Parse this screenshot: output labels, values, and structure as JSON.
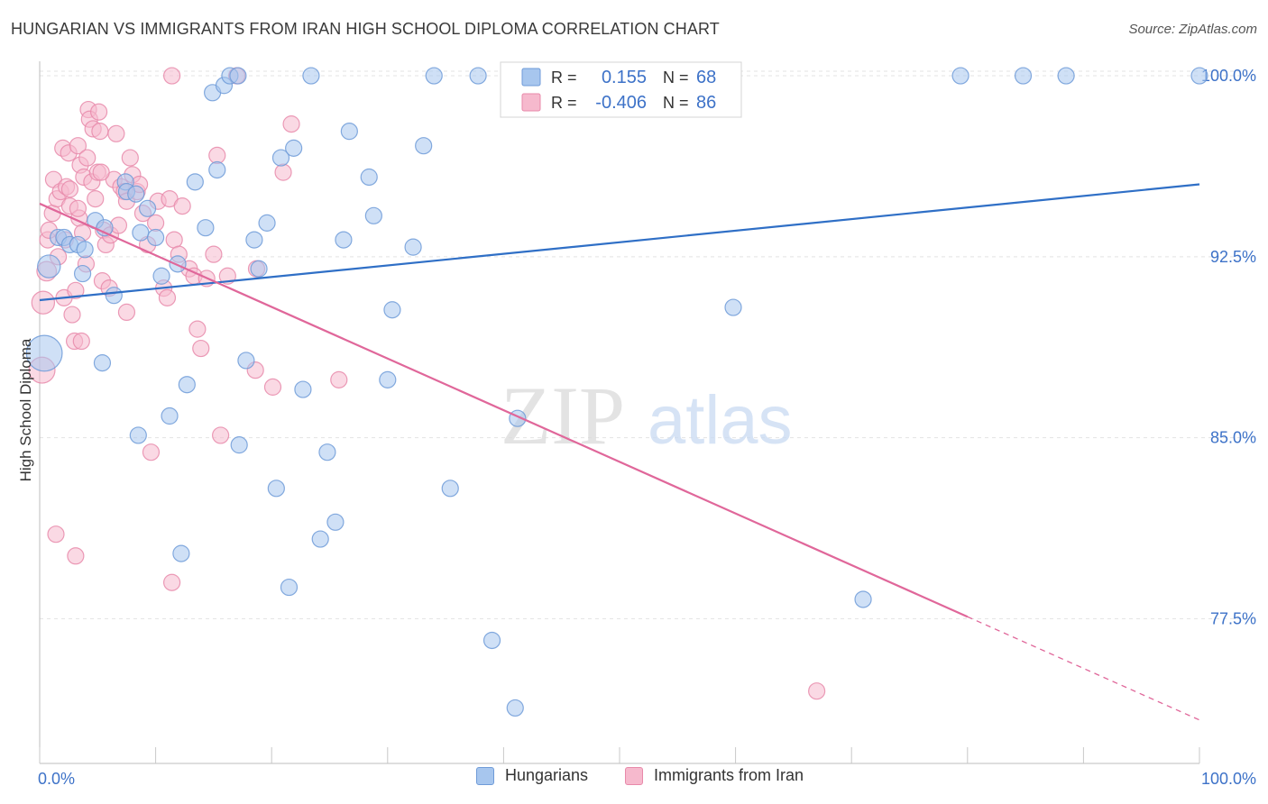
{
  "header": {
    "title": "HUNGARIAN VS IMMIGRANTS FROM IRAN HIGH SCHOOL DIPLOMA CORRELATION CHART",
    "source": "Source: ZipAtlas.com"
  },
  "watermark": {
    "zip": "ZIP",
    "atlas": "atlas"
  },
  "colors": {
    "blue_fill": "#a7c6ee",
    "blue_stroke": "#6f9bd8",
    "blue_line": "#2f6fc6",
    "pink_fill": "#f6b9cd",
    "pink_stroke": "#e889aa",
    "pink_line": "#e0679a",
    "axis_label": "#3d72c8",
    "grid": "#e3e3e3"
  },
  "legend": {
    "rows": [
      {
        "r_label": "R =",
        "r_value": "0.155",
        "n_label": "N =",
        "n_value": "68"
      },
      {
        "r_label": "R =",
        "r_value": "-0.406",
        "n_label": "N =",
        "n_value": "86"
      }
    ]
  },
  "chart_data": {
    "type": "scatter",
    "title": "HUNGARIAN VS IMMIGRANTS FROM IRAN HIGH SCHOOL DIPLOMA CORRELATION CHART",
    "xlabel": "",
    "ylabel": "High School Diploma",
    "xlim": [
      0,
      100
    ],
    "ylim": [
      71.5,
      100.6
    ],
    "x_tick_labels": [
      "0.0%",
      "100.0%"
    ],
    "y_ticks": [
      77.5,
      85.0,
      92.5,
      100.0
    ],
    "y_tick_labels": [
      "77.5%",
      "85.0%",
      "92.5%",
      "100.0%"
    ],
    "grid": true,
    "legend_position": "top-center",
    "series": [
      {
        "name": "Hungarians",
        "color": "#a7c6ee",
        "trend": {
          "x": [
            0,
            100
          ],
          "y": [
            90.7,
            95.5
          ],
          "r": 0.155,
          "n": 68
        },
        "points": [
          [
            0.4,
            88.5,
            2.2
          ],
          [
            0.8,
            92.1,
            1.4
          ],
          [
            1.6,
            93.3,
            1
          ],
          [
            2.1,
            93.3,
            1
          ],
          [
            2.6,
            93.0,
            1
          ],
          [
            3.3,
            93.0,
            1
          ],
          [
            3.9,
            92.8,
            1
          ],
          [
            3.7,
            91.8,
            1
          ],
          [
            4.8,
            94.0,
            1
          ],
          [
            5.6,
            93.7,
            1
          ],
          [
            5.4,
            88.1,
            1
          ],
          [
            6.4,
            90.9,
            1
          ],
          [
            7.4,
            95.6,
            1
          ],
          [
            7.5,
            95.2,
            1
          ],
          [
            8.3,
            95.1,
            1
          ],
          [
            8.7,
            93.5,
            1
          ],
          [
            9.3,
            94.5,
            1
          ],
          [
            10.0,
            93.3,
            1
          ],
          [
            10.5,
            91.7,
            1
          ],
          [
            11.2,
            85.9,
            1
          ],
          [
            11.9,
            92.2,
            1
          ],
          [
            12.7,
            87.2,
            1
          ],
          [
            13.4,
            95.6,
            1
          ],
          [
            14.3,
            93.7,
            1
          ],
          [
            15.3,
            96.1,
            1
          ],
          [
            14.9,
            99.3,
            1
          ],
          [
            15.9,
            99.6,
            1
          ],
          [
            16.4,
            100.0,
            1
          ],
          [
            17.1,
            100.0,
            1
          ],
          [
            17.8,
            88.2,
            1
          ],
          [
            17.2,
            84.7,
            1
          ],
          [
            18.5,
            93.2,
            1
          ],
          [
            18.9,
            92.0,
            1
          ],
          [
            19.6,
            93.9,
            1
          ],
          [
            20.4,
            82.9,
            1
          ],
          [
            20.8,
            96.6,
            1
          ],
          [
            21.9,
            97.0,
            1
          ],
          [
            21.5,
            78.8,
            1
          ],
          [
            22.7,
            87.0,
            1
          ],
          [
            23.4,
            100.0,
            1
          ],
          [
            24.2,
            80.8,
            1
          ],
          [
            24.8,
            84.4,
            1
          ],
          [
            25.5,
            81.5,
            1
          ],
          [
            26.2,
            93.2,
            1
          ],
          [
            26.7,
            97.7,
            1
          ],
          [
            28.4,
            95.8,
            1
          ],
          [
            28.8,
            94.2,
            1
          ],
          [
            30.0,
            87.4,
            1
          ],
          [
            30.4,
            90.3,
            1
          ],
          [
            32.2,
            92.9,
            1
          ],
          [
            33.1,
            97.1,
            1
          ],
          [
            34.0,
            100.0,
            1
          ],
          [
            35.4,
            82.9,
            1
          ],
          [
            37.8,
            100.0,
            1
          ],
          [
            39.0,
            76.6,
            1
          ],
          [
            41.0,
            73.8,
            1
          ],
          [
            41.2,
            85.8,
            1
          ],
          [
            44.3,
            100.0,
            1
          ],
          [
            51.4,
            100.0,
            1
          ],
          [
            57.4,
            100.0,
            1
          ],
          [
            59.8,
            90.4,
            1
          ],
          [
            71.0,
            78.3,
            1
          ],
          [
            79.4,
            100.0,
            1
          ],
          [
            84.8,
            100.0,
            1
          ],
          [
            88.5,
            100.0,
            1
          ],
          [
            100.0,
            100.0,
            1
          ],
          [
            8.5,
            85.1,
            1
          ],
          [
            12.2,
            80.2,
            1
          ]
        ]
      },
      {
        "name": "Immigrants from Iran",
        "color": "#f6b9cd",
        "trend": {
          "x": [
            0,
            100
          ],
          "y": [
            94.7,
            73.3
          ],
          "r": -0.406,
          "n": 86,
          "solid_until_x": 80
        },
        "points": [
          [
            0.2,
            87.8,
            1.6
          ],
          [
            0.3,
            90.6,
            1.4
          ],
          [
            0.6,
            91.9,
            1.2
          ],
          [
            0.7,
            93.2,
            1
          ],
          [
            0.8,
            93.6,
            1
          ],
          [
            1.1,
            94.3,
            1
          ],
          [
            1.2,
            95.7,
            1
          ],
          [
            1.5,
            94.9,
            1
          ],
          [
            1.6,
            92.5,
            1
          ],
          [
            1.8,
            95.2,
            1
          ],
          [
            2.0,
            97.0,
            1
          ],
          [
            2.1,
            90.8,
            1
          ],
          [
            2.2,
            93.2,
            1
          ],
          [
            2.3,
            95.4,
            1
          ],
          [
            2.5,
            96.8,
            1
          ],
          [
            2.6,
            94.6,
            1
          ],
          [
            2.8,
            90.1,
            1
          ],
          [
            3.0,
            89.0,
            1
          ],
          [
            3.1,
            91.1,
            1
          ],
          [
            3.3,
            97.1,
            1
          ],
          [
            3.4,
            94.1,
            1
          ],
          [
            3.5,
            96.3,
            1
          ],
          [
            3.7,
            93.5,
            1
          ],
          [
            3.8,
            95.8,
            1
          ],
          [
            4.0,
            92.2,
            1
          ],
          [
            4.1,
            96.6,
            1
          ],
          [
            4.2,
            98.6,
            1
          ],
          [
            4.3,
            98.2,
            1
          ],
          [
            4.5,
            95.6,
            1
          ],
          [
            4.6,
            97.8,
            1
          ],
          [
            4.8,
            94.9,
            1
          ],
          [
            5.0,
            96.0,
            1
          ],
          [
            5.1,
            98.5,
            1
          ],
          [
            5.2,
            97.7,
            1
          ],
          [
            5.4,
            91.5,
            1
          ],
          [
            5.5,
            93.6,
            1
          ],
          [
            5.7,
            93.0,
            1
          ],
          [
            6.1,
            93.4,
            1
          ],
          [
            6.4,
            95.7,
            1
          ],
          [
            6.6,
            97.6,
            1
          ],
          [
            6.8,
            93.8,
            1
          ],
          [
            7.0,
            95.4,
            1
          ],
          [
            7.3,
            95.2,
            1
          ],
          [
            7.5,
            94.8,
            1
          ],
          [
            7.8,
            96.6,
            1
          ],
          [
            8.0,
            95.9,
            1
          ],
          [
            8.4,
            95.2,
            1
          ],
          [
            8.6,
            95.5,
            1
          ],
          [
            8.9,
            94.3,
            1
          ],
          [
            9.3,
            93.0,
            1
          ],
          [
            9.6,
            84.4,
            1
          ],
          [
            10.2,
            94.8,
            1
          ],
          [
            10.7,
            91.2,
            1
          ],
          [
            11.0,
            90.8,
            1
          ],
          [
            11.2,
            94.9,
            1
          ],
          [
            11.4,
            100.0,
            1
          ],
          [
            11.6,
            93.2,
            1
          ],
          [
            12.0,
            92.6,
            1
          ],
          [
            12.3,
            94.6,
            1
          ],
          [
            12.9,
            92.0,
            1
          ],
          [
            13.3,
            91.7,
            1
          ],
          [
            13.6,
            89.5,
            1
          ],
          [
            13.9,
            88.7,
            1
          ],
          [
            14.4,
            91.6,
            1
          ],
          [
            15.0,
            92.6,
            1
          ],
          [
            15.3,
            96.7,
            1
          ],
          [
            15.6,
            85.1,
            1
          ],
          [
            16.2,
            91.7,
            1
          ],
          [
            17.0,
            100.0,
            1
          ],
          [
            18.6,
            87.8,
            1
          ],
          [
            20.1,
            87.1,
            1
          ],
          [
            21.0,
            96.0,
            1
          ],
          [
            21.7,
            98.0,
            1
          ],
          [
            25.8,
            87.4,
            1
          ],
          [
            3.3,
            94.5,
            1
          ],
          [
            5.3,
            96.0,
            1
          ],
          [
            6.0,
            91.2,
            1
          ],
          [
            7.5,
            90.2,
            1
          ],
          [
            1.4,
            81.0,
            1
          ],
          [
            3.1,
            80.1,
            1
          ],
          [
            11.4,
            79.0,
            1
          ],
          [
            18.7,
            92.0,
            1
          ],
          [
            2.6,
            95.3,
            1
          ],
          [
            3.6,
            89.0,
            1
          ],
          [
            10.0,
            93.9,
            1
          ],
          [
            67.0,
            74.5,
            1
          ]
        ]
      }
    ]
  }
}
